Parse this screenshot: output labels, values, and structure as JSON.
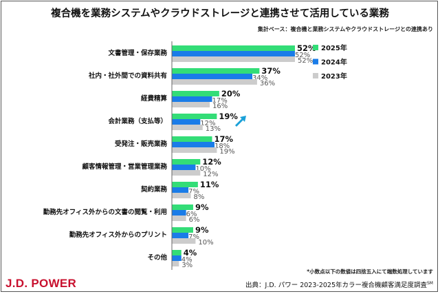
{
  "chart_data": {
    "type": "bar",
    "orientation": "horizontal",
    "title": "複合機を業務システムやクラウドストレージと連携させて活用している業務",
    "subtitle": "集計ベース：複合機と業務システムやクラウドストレージとの連携あり",
    "categories": [
      "文書管理・保存業務",
      "社内・社外間での資料共有",
      "経費精算",
      "会計業務（支払等）",
      "受発注・販売業務",
      "顧客情報管理・営業管理業務",
      "契約業務",
      "勤務先オフィス外からの文書の閲覧・利用",
      "勤務先オフィス外からのプリント",
      "その他"
    ],
    "series": [
      {
        "name": "2025年",
        "color": "#33dd77",
        "values": [
          52,
          37,
          20,
          19,
          17,
          12,
          11,
          9,
          9,
          4
        ]
      },
      {
        "name": "2024年",
        "color": "#1a7ce8",
        "values": [
          52,
          34,
          17,
          12,
          18,
          10,
          7,
          6,
          7,
          4
        ]
      },
      {
        "name": "2023年",
        "color": "#cccccc",
        "values": [
          52,
          36,
          16,
          13,
          19,
          12,
          8,
          6,
          10,
          3
        ]
      }
    ],
    "value_suffix": "%",
    "xlim": [
      0,
      60
    ],
    "grid": false,
    "legend_placement": "right",
    "annotation": "arrow-up-right on 会計業務（支払等）",
    "arrow_color": "#1aa0d8"
  },
  "note": "*小数点以下の数値は四捨五入にて端数処理しています",
  "source": "出典：J.D. パワー 2023-2025年カラー複合機顧客満足度調査",
  "source_mark": "SM",
  "logo": "J.D. POWER"
}
